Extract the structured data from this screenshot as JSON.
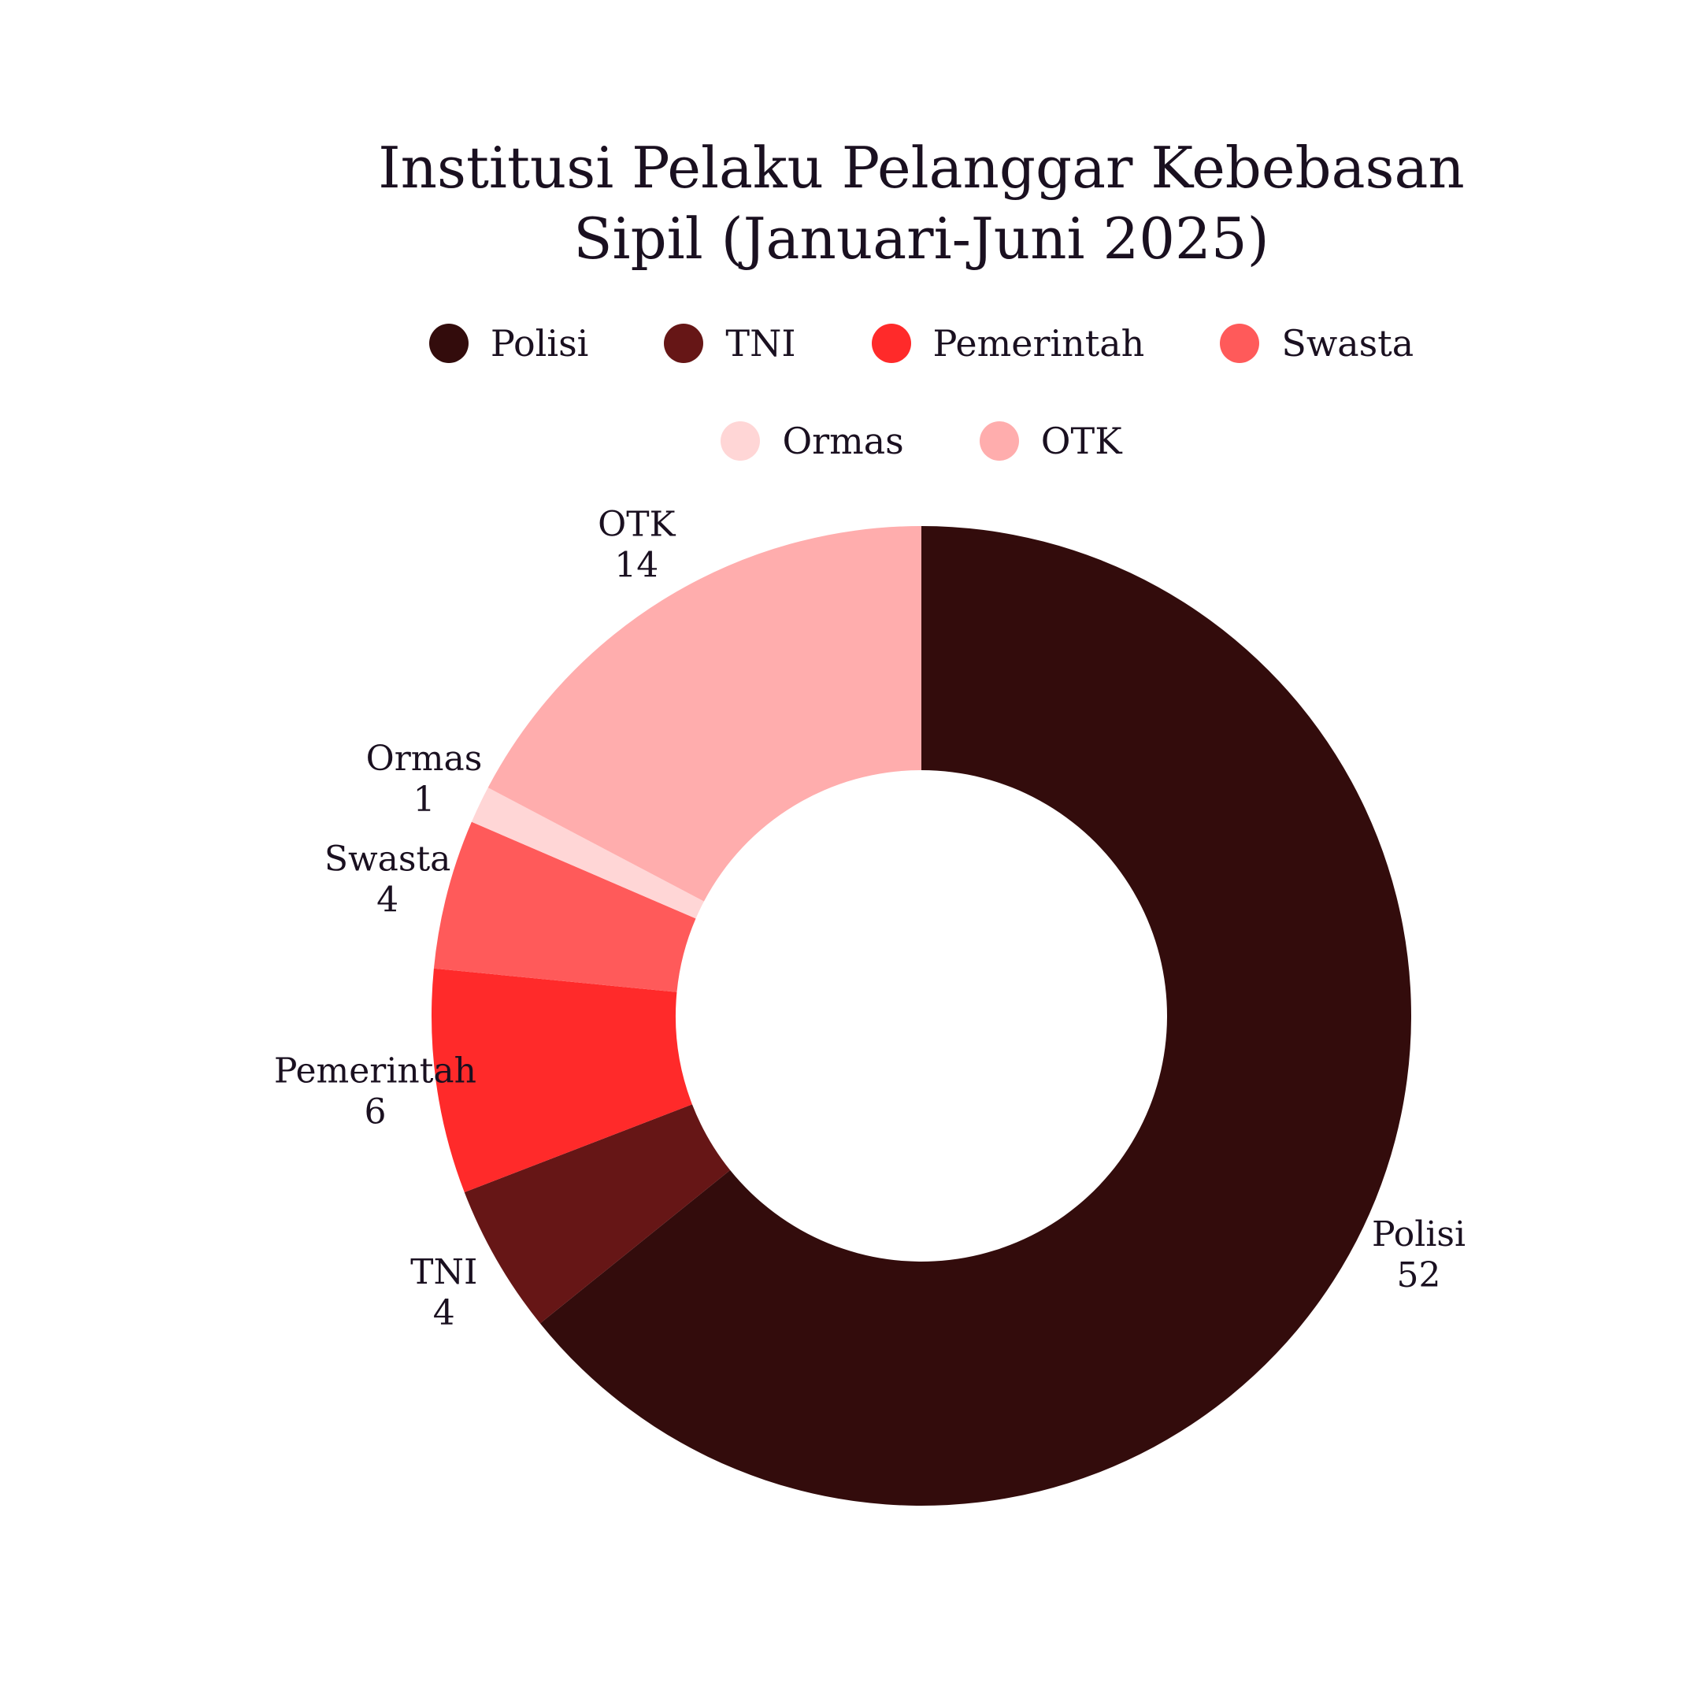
{
  "chart_data": {
    "type": "pie",
    "style": "donut",
    "title": "Institusi Pelaku Pelanggar Kebebasan Sipil (Januari-Juni 2025)",
    "title_lines": [
      "Institusi Pelaku Pelanggar Kebebasan",
      "Sipil (Januari-Juni 2025)"
    ],
    "legend_position": "top",
    "slices": [
      {
        "label": "Polisi",
        "value": 52,
        "color": "#330c0c"
      },
      {
        "label": "TNI",
        "value": 4,
        "color": "#661616"
      },
      {
        "label": "Pemerintah",
        "value": 6,
        "color": "#ff2a2a"
      },
      {
        "label": "Swasta",
        "value": 4,
        "color": "#ff5a5a"
      },
      {
        "label": "Ormas",
        "value": 1,
        "color": "#ffd6d6"
      },
      {
        "label": "OTK",
        "value": 14,
        "color": "#ffadad"
      }
    ]
  }
}
